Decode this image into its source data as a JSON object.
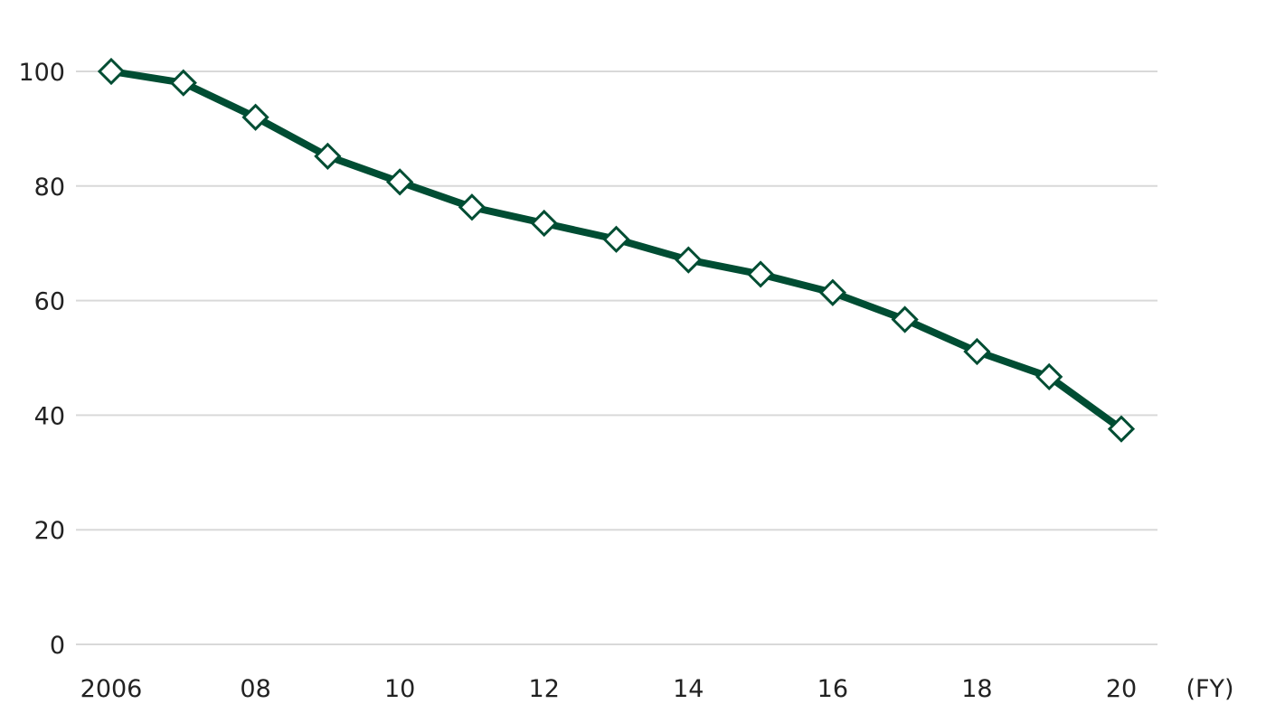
{
  "chart_data": {
    "type": "line",
    "x": [
      2006,
      2007,
      2008,
      2009,
      2010,
      2011,
      2012,
      2013,
      2014,
      2015,
      2016,
      2017,
      2018,
      2019,
      2020
    ],
    "series": [
      {
        "values": [
          100,
          98,
          92,
          85.2,
          80.7,
          76.3,
          73.5,
          70.7,
          67.1,
          64.6,
          61.4,
          56.7,
          51.1,
          46.7,
          37.6
        ],
        "color": "#004d33",
        "marker": "diamond-open"
      }
    ],
    "x_ticks": [
      {
        "value": 2006,
        "label": "2006"
      },
      {
        "value": 2008,
        "label": "08"
      },
      {
        "value": 2010,
        "label": "10"
      },
      {
        "value": 2012,
        "label": "12"
      },
      {
        "value": 2014,
        "label": "14"
      },
      {
        "value": 2016,
        "label": "16"
      },
      {
        "value": 2018,
        "label": "18"
      },
      {
        "value": 2020,
        "label": "20"
      }
    ],
    "y_ticks": [
      {
        "value": 0,
        "label": "0"
      },
      {
        "value": 20,
        "label": "20"
      },
      {
        "value": 40,
        "label": "40"
      },
      {
        "value": 60,
        "label": "60"
      },
      {
        "value": 80,
        "label": "80"
      },
      {
        "value": 100,
        "label": "100"
      }
    ],
    "xlabel": "(FY)",
    "ylabel": "",
    "title": "",
    "ylim": [
      0,
      100
    ],
    "xlim": [
      2006,
      2020
    ],
    "grid": "horizontal",
    "legend": "none",
    "grid_color": "#d9d9d9",
    "text_color": "#222222"
  }
}
